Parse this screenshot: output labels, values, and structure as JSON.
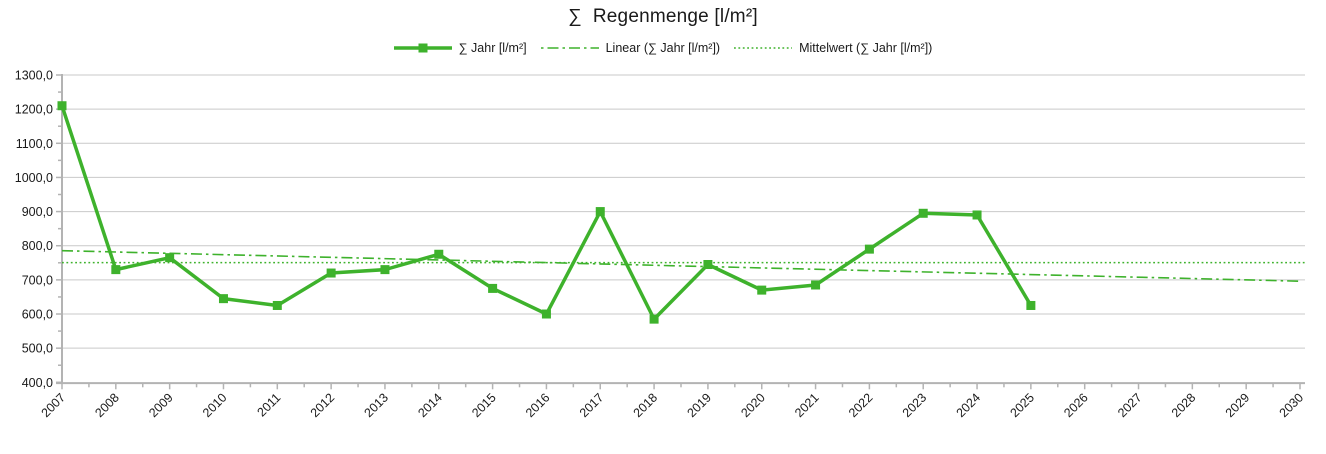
{
  "title": "∑  Regenmenge [l/m²]",
  "colors": {
    "series": "#3eb22c",
    "grid": "#c9c9c9",
    "axis": "#b3b3b3",
    "text": "#1a1a1a",
    "background": "#ffffff"
  },
  "chart_data": {
    "type": "line",
    "title": "∑  Regenmenge [l/m²]",
    "categories": [
      "2007",
      "2008",
      "2009",
      "2010",
      "2011",
      "2012",
      "2013",
      "2014",
      "2015",
      "2016",
      "2017",
      "2018",
      "2019",
      "2020",
      "2021",
      "2022",
      "2023",
      "2024",
      "2025",
      "2026",
      "2027",
      "2028",
      "2029",
      "2030"
    ],
    "series": [
      {
        "name": "∑ Jahr [l/m²]",
        "values": [
          1210,
          730,
          765,
          645,
          625,
          720,
          730,
          775,
          675,
          600,
          900,
          585,
          745,
          670,
          685,
          790,
          895,
          890,
          625
        ]
      }
    ],
    "trend_lines": [
      {
        "name": "Linear (∑ Jahr [l/m²])",
        "type": "linear",
        "extends_to": "2030"
      },
      {
        "name": "Mittelwert (∑ Jahr [l/m²])",
        "type": "mean",
        "approx_value": 750.5,
        "extends_to": "2030"
      }
    ],
    "ylim": [
      400,
      1300
    ],
    "y_tick_step": 100,
    "y_tick_labels": [
      "400,0",
      "500,0",
      "600,0",
      "700,0",
      "800,0",
      "900,0",
      "1000,0",
      "1100,0",
      "1200,0",
      "1300,0"
    ],
    "grid": "horizontal",
    "legend_position": "top",
    "x_label_rotation_deg": -45
  }
}
